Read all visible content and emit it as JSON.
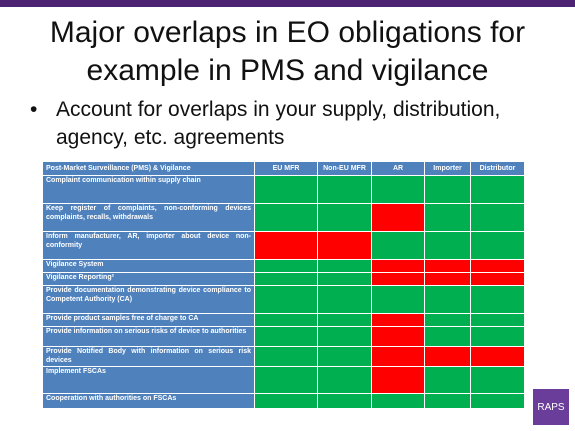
{
  "title": "Major overlaps in EO obligations for example in PMS and vigilance",
  "bullet": "Account for overlaps in your supply, distribution, agency, etc. agreements",
  "table": {
    "headers": [
      "Post-Market Surveillance (PMS) & Vigilance",
      "EU MFR",
      "Non-EU MFR",
      "AR",
      "Importer",
      "Distributor"
    ],
    "rows": [
      {
        "label": "Complaint communication within supply chain",
        "status": [
          "green",
          "green",
          "green",
          "green",
          "green"
        ]
      },
      {
        "label": "Keep register of complaints, non-conforming devices complaints, recalls, withdrawals",
        "status": [
          "green",
          "green",
          "red",
          "green",
          "green"
        ]
      },
      {
        "label": "Inform manufacturer, AR, importer about device non-conformity",
        "status": [
          "red",
          "red",
          "green",
          "green",
          "green"
        ]
      },
      {
        "label": "Vigilance System",
        "status": [
          "green",
          "green",
          "red",
          "red",
          "red"
        ]
      },
      {
        "label": "Vigilance Reporting²",
        "status": [
          "green",
          "green",
          "red",
          "red",
          "red"
        ]
      },
      {
        "label": "Provide documentation demonstrating device compliance to Competent Authority (CA)",
        "status": [
          "green",
          "green",
          "green",
          "green",
          "green"
        ]
      },
      {
        "label": "Provide product samples free of charge to CA",
        "status": [
          "green",
          "green",
          "red",
          "green",
          "green"
        ]
      },
      {
        "label": "Provide information on serious risks of device to authorities",
        "status": [
          "green",
          "green",
          "red",
          "green",
          "green"
        ]
      },
      {
        "label": "Provide Notified Body with information on serious risk devices",
        "status": [
          "green",
          "green",
          "red",
          "red",
          "red"
        ]
      },
      {
        "label": "Implement FSCAs",
        "status": [
          "green",
          "green",
          "red",
          "green",
          "green"
        ]
      },
      {
        "label": "Cooperation with authorities on FSCAs",
        "status": [
          "green",
          "green",
          "green",
          "green",
          "green"
        ]
      }
    ]
  },
  "logo": "RAPS",
  "colors": {
    "header_bg": "#4f81bd",
    "green": "#00b050",
    "red": "#ff0000",
    "accent": "#4b2372"
  }
}
